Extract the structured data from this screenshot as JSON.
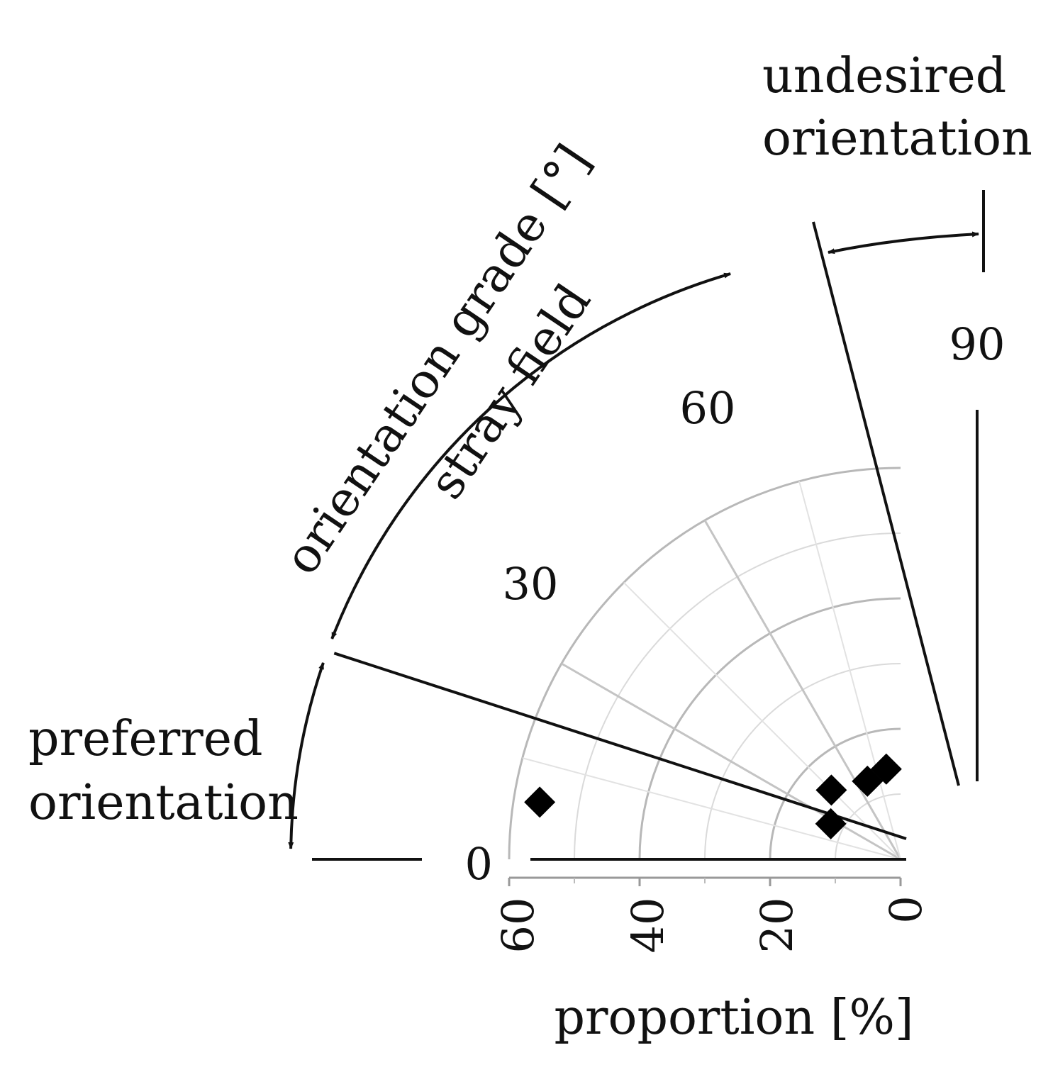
{
  "chart_data": {
    "type": "scatter",
    "coordinate_system": "polar-quadrant",
    "xlabel": "proportion [%]",
    "ylabel": "orientation grade [°]",
    "radial_ticks": [
      "60",
      "40",
      "20",
      "0"
    ],
    "radial_tick_values": [
      60,
      40,
      20,
      0
    ],
    "radial_range": [
      0,
      60
    ],
    "angular_ticks": [
      "0",
      "30",
      "60",
      "90"
    ],
    "angular_tick_values": [
      0,
      30,
      60,
      90
    ],
    "angular_range": [
      0,
      90
    ],
    "grid": true,
    "points": [
      {
        "angle": 9,
        "proportion": 56
      },
      {
        "angle": 27,
        "proportion": 12
      },
      {
        "angle": 45,
        "proportion": 15
      },
      {
        "angle": 67,
        "proportion": 13
      },
      {
        "angle": 81,
        "proportion": 14
      }
    ],
    "annotations": {
      "stray_field": "stray field",
      "preferred": [
        "preferred",
        "orientation"
      ],
      "undesired": [
        "undesired",
        "orientation"
      ]
    },
    "boundary_angles": {
      "preferred": 20,
      "undesired": 75
    }
  }
}
